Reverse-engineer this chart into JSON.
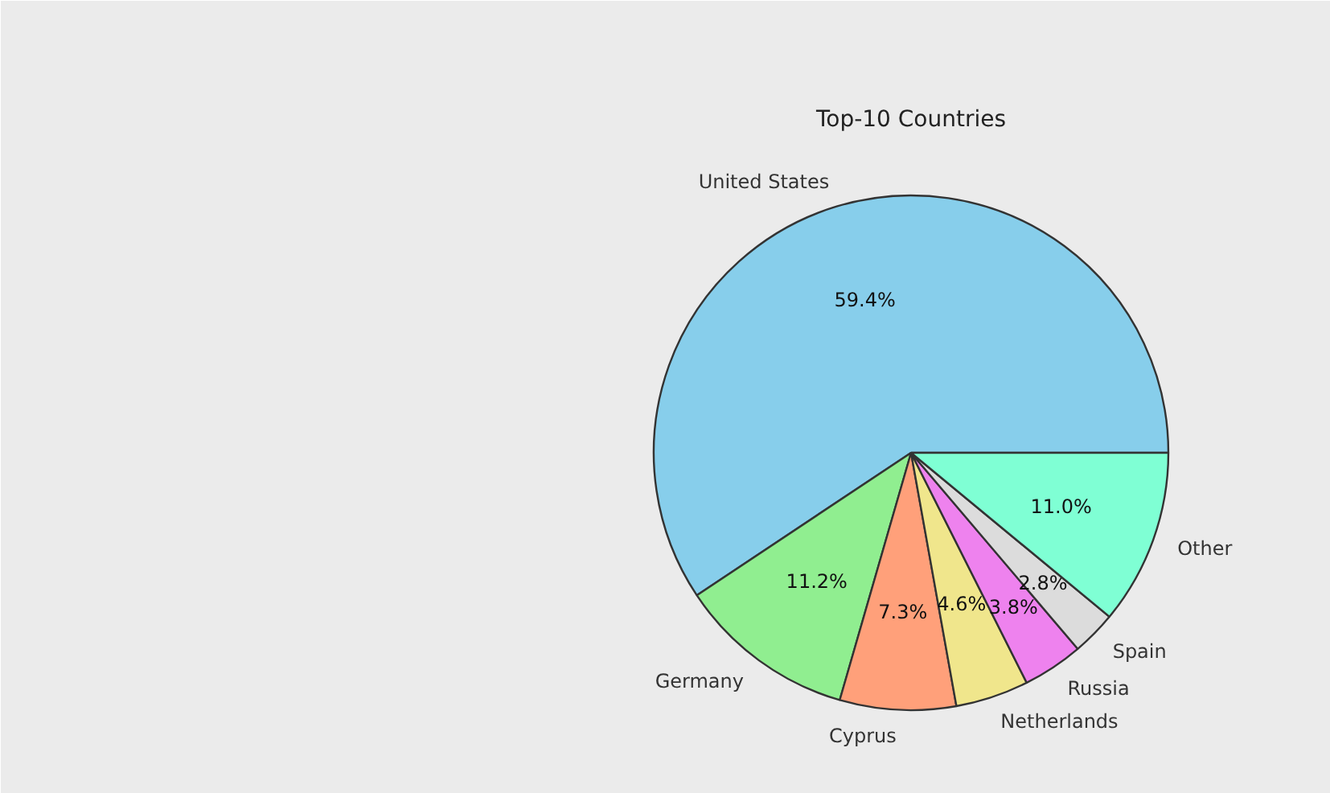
{
  "chart_data": {
    "type": "pie",
    "title": "Top-10 Countries",
    "categories": [
      "United States",
      "Germany",
      "Cyprus",
      "Netherlands",
      "Russia",
      "Spain",
      "Other"
    ],
    "values": [
      59.4,
      11.2,
      7.3,
      4.6,
      3.8,
      2.8,
      11.0
    ],
    "value_labels": [
      "59.4%",
      "11.2%",
      "7.3%",
      "4.6%",
      "3.8%",
      "2.8%",
      "11.0%"
    ],
    "colors": [
      "#87ceeb",
      "#90ee90",
      "#ffa07a",
      "#f0e68c",
      "#ee82ee",
      "#dcdcdc",
      "#7fffd4"
    ]
  }
}
